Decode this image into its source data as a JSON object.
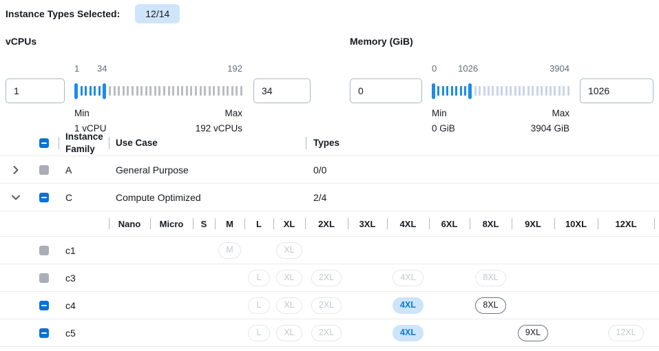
{
  "header": {
    "label": "Instance Types Selected:",
    "badge": "12/14"
  },
  "filters": [
    {
      "id": "vcpus",
      "title": "vCPUs",
      "from_value": "1",
      "to_value": "34",
      "scale_min": "1",
      "scale_value": "34",
      "scale_max": "192",
      "min_label": "Min",
      "min_caption": "1 vCPU",
      "max_label": "Max",
      "max_caption": "192 vCPUs",
      "slider": {
        "total_ticks": 37,
        "handle_start_index": 0,
        "handle_end_index": 6,
        "value_label_pct": 16.5,
        "inactive_color": "#b8bdc5"
      }
    },
    {
      "id": "memory",
      "title": "Memory (GiB)",
      "from_value": "0",
      "to_value": "1026",
      "scale_min": "0",
      "scale_value": "1026",
      "scale_max": "3904",
      "min_label": "Min",
      "min_caption": "0 GiB",
      "max_label": "Max",
      "max_caption": "3904 GiB",
      "slider": {
        "total_ticks": 31,
        "handle_start_index": 0,
        "handle_end_index": 8,
        "value_label_pct": 26.3,
        "inactive_color": "#c9d4e9"
      }
    }
  ],
  "table": {
    "headers": {
      "family": "Instance Family",
      "use_case": "Use Case",
      "types": "Types"
    },
    "header_checkbox_state": "indeterminate",
    "size_columns": [
      "Nano",
      "Micro",
      "S",
      "M",
      "L",
      "XL",
      "2XL",
      "3XL",
      "4XL",
      "6XL",
      "8XL",
      "9XL",
      "10XL",
      "12XL"
    ],
    "families": [
      {
        "letter": "A",
        "use_case": "General Purpose",
        "types": "0/0",
        "expanded": false,
        "checkbox": "disabled",
        "children": []
      },
      {
        "letter": "C",
        "use_case": "Compute Optimized",
        "types": "2/4",
        "expanded": true,
        "checkbox": "indeterminate",
        "children": [
          {
            "name": "c1",
            "checkbox": "disabled",
            "badges": {
              "M": "disabled",
              "XL": "disabled"
            }
          },
          {
            "name": "c3",
            "checkbox": "disabled",
            "badges": {
              "L": "disabled",
              "XL": "disabled",
              "2XL": "disabled",
              "4XL": "disabled",
              "8XL": "disabled"
            }
          },
          {
            "name": "c4",
            "checkbox": "indeterminate",
            "badges": {
              "L": "disabled",
              "XL": "disabled",
              "2XL": "disabled",
              "4XL": "selected",
              "8XL": "enabled"
            }
          },
          {
            "name": "c5",
            "checkbox": "indeterminate",
            "badges": {
              "L": "disabled",
              "XL": "disabled",
              "2XL": "disabled",
              "4XL": "selected",
              "9XL": "enabled",
              "12XL": "disabled"
            }
          }
        ]
      }
    ]
  },
  "colors": {
    "accent_blue": "#0972d3",
    "slider_blue": "#1d8be8",
    "count_badge_bg": "#cfe5fb",
    "selected_badge_bg": "#cde4fa",
    "selected_badge_text": "#0b79d8",
    "enabled_badge_border": "#69727f",
    "disabled_badge_border": "#e4e7ea",
    "disabled_badge_text": "#c3c8cf",
    "disabled_checkbox": "#a9aeb5",
    "row_border": "#e9ebed"
  }
}
